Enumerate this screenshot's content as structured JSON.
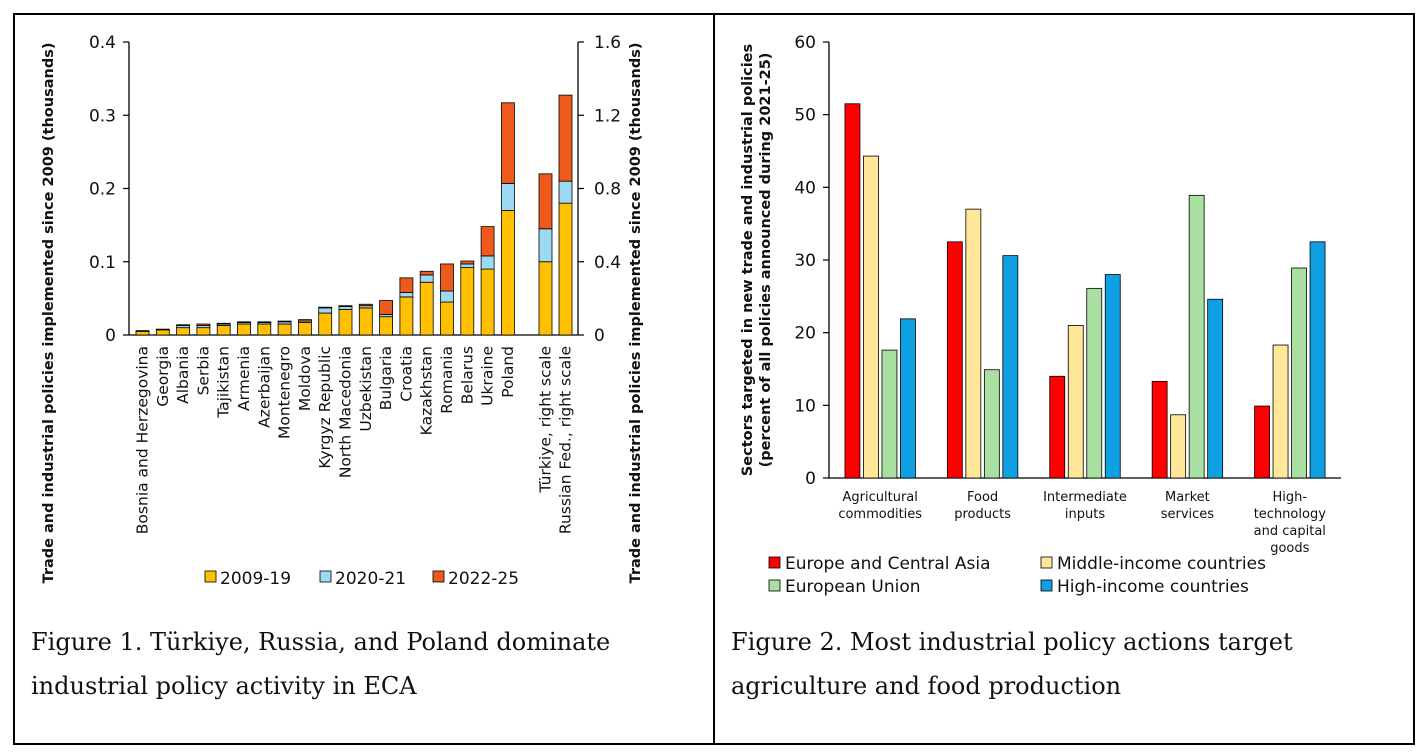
{
  "colors": {
    "s2009": "#FFC000",
    "s2020": "#9DD9F3",
    "s2022": "#EE5A1C",
    "eca": "#FF0000",
    "mic": "#FFE699",
    "eu": "#A9DFA1",
    "hic": "#0FA0E4"
  },
  "figure1": {
    "caption": "Figure 1. Türkiye, Russia, and Poland dominate industrial policy activity in ECA",
    "legend": [
      "2009-19",
      "2020-21",
      "2022-25"
    ]
  },
  "figure2": {
    "caption": "Figure 2. Most industrial policy actions target agriculture and food production",
    "legend": [
      "Europe and Central Asia",
      "Middle-income countries",
      "European Union",
      "High-income countries"
    ]
  },
  "chart_data": [
    {
      "type": "bar",
      "stacked": true,
      "title": "",
      "ylabel": "Trade and industrial policies implemented since 2009 (thousands)",
      "y2label": "Trade and industrial policies implemented since 2009 (thousands)",
      "ylim": [
        0,
        0.4
      ],
      "y2lim": [
        0,
        1.6
      ],
      "yticks": [
        "0",
        "0.1",
        "0.2",
        "0.3",
        "0.4"
      ],
      "y2ticks": [
        "0",
        "0.4",
        "0.8",
        "1.2",
        "1.6"
      ],
      "categories": [
        "Bosnia and Herzegovina",
        "Georgia",
        "Albania",
        "Serbia",
        "Tajikistan",
        "Armenia",
        "Azerbaijan",
        "Montenegro",
        "Moldova",
        "Kyrgyz Republic",
        "North Macedonia",
        "Uzbekistan",
        "Bulgaria",
        "Croatia",
        "Kazakhstan",
        "Romania",
        "Belarus",
        "Ukraine",
        "Poland",
        "Türkiye, right scale",
        "Russian Fed., right scale"
      ],
      "right_scale_categories": [
        "Türkiye, right scale",
        "Russian Fed., right scale"
      ],
      "series": [
        {
          "name": "2009-19",
          "values": [
            0.005,
            0.007,
            0.01,
            0.01,
            0.013,
            0.015,
            0.015,
            0.015,
            0.017,
            0.03,
            0.035,
            0.037,
            0.025,
            0.052,
            0.072,
            0.045,
            0.092,
            0.09,
            0.17,
            0.4,
            0.72
          ]
        },
        {
          "name": "2020-21",
          "values": [
            0.001,
            0.001,
            0.003,
            0.003,
            0.002,
            0.002,
            0.002,
            0.003,
            0.002,
            0.007,
            0.004,
            0.003,
            0.003,
            0.006,
            0.01,
            0.015,
            0.005,
            0.018,
            0.037,
            0.18,
            0.12
          ]
        },
        {
          "name": "2022-25",
          "values": [
            0.0,
            0.0,
            0.001,
            0.002,
            0.001,
            0.001,
            0.001,
            0.001,
            0.002,
            0.001,
            0.001,
            0.002,
            0.019,
            0.02,
            0.005,
            0.037,
            0.004,
            0.04,
            0.11,
            0.3,
            0.47
          ]
        }
      ]
    },
    {
      "type": "bar",
      "title": "",
      "ylabel": "Sectors targeted in new trade and industrial policies (percent of all policies announced during 2021-25)",
      "ylim": [
        0,
        60
      ],
      "yticks": [
        "0",
        "10",
        "20",
        "30",
        "40",
        "50",
        "60"
      ],
      "categories": [
        "Agricultural commodities",
        "Food products",
        "Intermediate inputs",
        "Market services",
        "High-technology and capital goods"
      ],
      "category_lines": [
        [
          "Agricultural",
          "commodities"
        ],
        [
          "Food",
          "products"
        ],
        [
          "Intermediate",
          "inputs"
        ],
        [
          "Market",
          "services"
        ],
        [
          "High-",
          "technology",
          "and capital",
          "goods"
        ]
      ],
      "series": [
        {
          "name": "Europe and Central Asia",
          "values": [
            51.5,
            32.5,
            14.0,
            13.3,
            9.9
          ]
        },
        {
          "name": "Middle-income countries",
          "values": [
            44.3,
            37.0,
            21.0,
            8.7,
            18.3
          ]
        },
        {
          "name": "European Union",
          "values": [
            17.6,
            14.9,
            26.1,
            38.9,
            28.9
          ]
        },
        {
          "name": "High-income countries",
          "values": [
            21.9,
            30.6,
            28.0,
            24.6,
            32.5
          ]
        }
      ]
    }
  ]
}
